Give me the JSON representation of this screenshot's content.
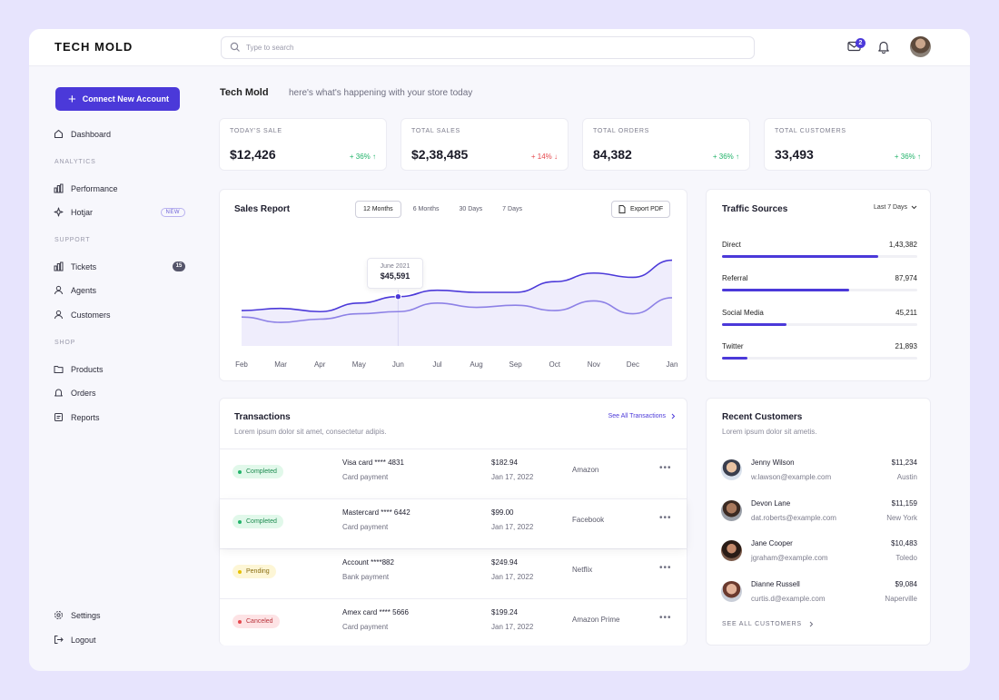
{
  "brand": {
    "name": "TECH MOLD"
  },
  "search": {
    "placeholder": "Type to search"
  },
  "header": {
    "mail_count": "2",
    "accent": "#4b39d9"
  },
  "sidebar": {
    "cta": "Connect New Account",
    "dashboard": "Dashboard",
    "sections": {
      "analytics": "ANALYTICS",
      "support": "SUPPORT",
      "shop": "SHOP"
    },
    "performance": "Performance",
    "hotjar": "Hotjar",
    "hotjar_badge": "NEW",
    "tickets": "Tickets",
    "tickets_count": "15",
    "agents": "Agents",
    "customers": "Customers",
    "products": "Products",
    "orders": "Orders",
    "reports": "Reports",
    "settings": "Settings",
    "logout": "Logout"
  },
  "greeting": {
    "store": "Tech Mold",
    "message": "here's what's happening with your store today"
  },
  "stats": [
    {
      "label": "TODAY'S SALE",
      "value": "$12,426",
      "change": "+ 36% ↑",
      "trend": "up"
    },
    {
      "label": "TOTAL SALES",
      "value": "$2,38,485",
      "change": "+ 14% ↓",
      "trend": "down"
    },
    {
      "label": "TOTAL ORDERS",
      "value": "84,382",
      "change": "+ 36% ↑",
      "trend": "up"
    },
    {
      "label": "TOTAL CUSTOMERS",
      "value": "33,493",
      "change": "+ 36% ↑",
      "trend": "up"
    }
  ],
  "sales_report": {
    "title": "Sales Report",
    "tabs": [
      "12 Months",
      "6 Months",
      "30 Days",
      "7 Days"
    ],
    "active_tab": "12 Months",
    "export": "Export PDF",
    "tooltip": {
      "label": "June 2021",
      "value": "$45,591"
    }
  },
  "chart_data": {
    "type": "area",
    "x": [
      "Feb",
      "Mar",
      "Apr",
      "May",
      "Jun",
      "Jul",
      "Aug",
      "Sep",
      "Oct",
      "Nov",
      "Dec",
      "Jan"
    ],
    "series": [
      {
        "values": [
          33,
          35,
          32,
          40,
          46,
          52,
          50,
          50,
          60,
          68,
          64,
          80
        ]
      },
      {
        "values": [
          27,
          22,
          25,
          30,
          32,
          40,
          36,
          38,
          33,
          42,
          30,
          45
        ]
      }
    ],
    "ylim": [
      0,
      100
    ],
    "highlight": {
      "x": "Jun",
      "series": 0
    },
    "grid": false,
    "colors": [
      "#4b39d9",
      "#8d81e6"
    ]
  },
  "traffic": {
    "title": "Traffic Sources",
    "range": "Last 7 Days",
    "sources": [
      {
        "name": "Direct",
        "value": "1,43,382",
        "share": 0.8
      },
      {
        "name": "Referral",
        "value": "87,974",
        "share": 0.65
      },
      {
        "name": "Social Media",
        "value": "45,211",
        "share": 0.33
      },
      {
        "name": "Twitter",
        "value": "21,893",
        "share": 0.13
      }
    ]
  },
  "transactions": {
    "title": "Transactions",
    "subtitle": "Lorem ipsum dolor sit amet, consectetur adipis.",
    "see_all": "See All Transactions",
    "rows": [
      {
        "status": "Completed",
        "status_key": "completed",
        "method": "Visa card **** 4831",
        "type": "Card payment",
        "amount": "$182.94",
        "date": "Jan 17, 2022",
        "merchant": "Amazon"
      },
      {
        "status": "Completed",
        "status_key": "completed",
        "method": "Mastercard **** 6442",
        "type": "Card payment",
        "amount": "$99.00",
        "date": "Jan 17, 2022",
        "merchant": "Facebook"
      },
      {
        "status": "Pending",
        "status_key": "pending",
        "method": "Account ****882",
        "type": "Bank payment",
        "amount": "$249.94",
        "date": "Jan 17, 2022",
        "merchant": "Netflix"
      },
      {
        "status": "Canceled",
        "status_key": "canceled",
        "method": "Amex card **** 5666",
        "type": "Card payment",
        "amount": "$199.24",
        "date": "Jan 17, 2022",
        "merchant": "Amazon Prime"
      }
    ]
  },
  "recent_customers": {
    "title": "Recent Customers",
    "subtitle": "Lorem ipsum dolor sit ametis.",
    "see_all": "SEE ALL CUSTOMERS",
    "items": [
      {
        "name": "Jenny Wilson",
        "email": "w.lawson@example.com",
        "amount": "$11,234",
        "location": "Austin"
      },
      {
        "name": "Devon Lane",
        "email": "dat.roberts@example.com",
        "amount": "$11,159",
        "location": "New York"
      },
      {
        "name": "Jane Cooper",
        "email": "jgraham@example.com",
        "amount": "$10,483",
        "location": "Toledo"
      },
      {
        "name": "Dianne Russell",
        "email": "curtis.d@example.com",
        "amount": "$9,084",
        "location": "Naperville"
      }
    ]
  }
}
